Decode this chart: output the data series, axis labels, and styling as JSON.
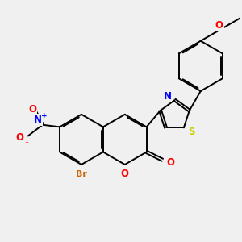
{
  "bg_color": "#f0f0f0",
  "bond_color": "#000000",
  "bond_width": 1.4,
  "atom_colors": {
    "O": "#ff0000",
    "N": "#0000ff",
    "S": "#cccc00",
    "Br": "#cc6600",
    "O_ether": "#ff4400",
    "C": "#000000"
  },
  "font_size": 8.5
}
